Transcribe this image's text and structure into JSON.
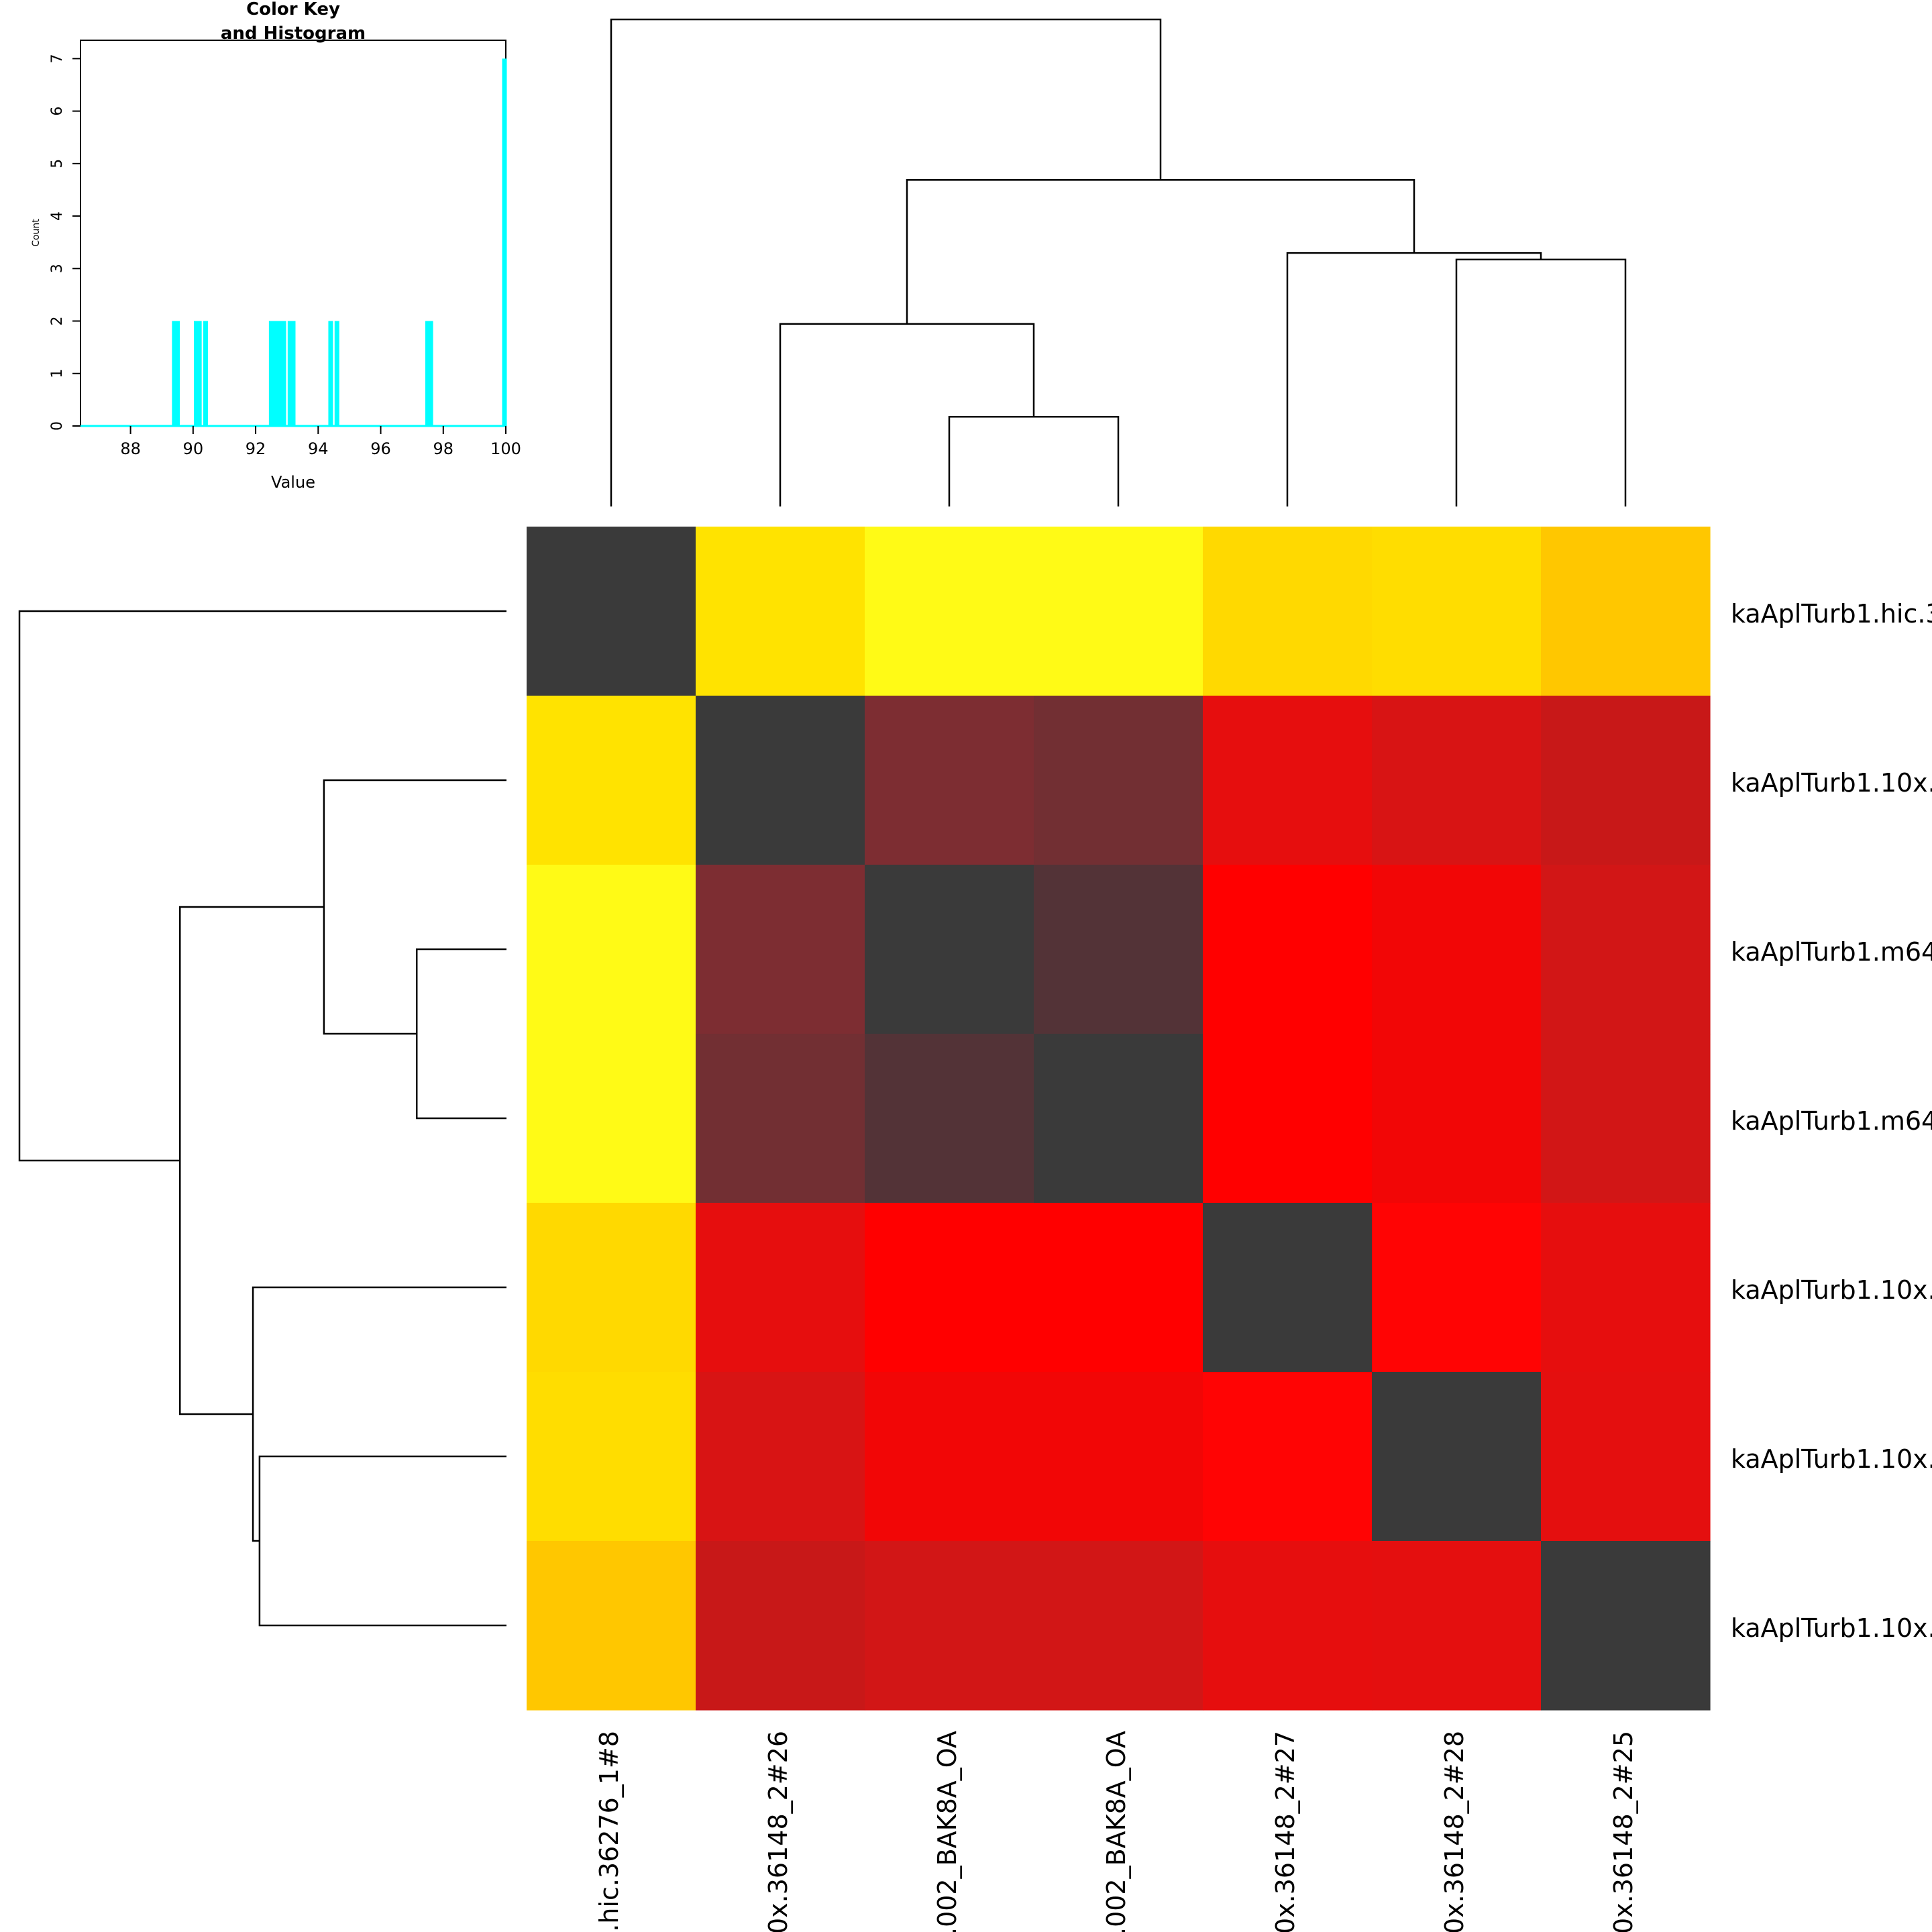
{
  "colors": {
    "histogram": "#00FFFF",
    "diagonal": "#3A3A3A",
    "axis": "#000000"
  },
  "chart_data": [
    {
      "type": "bar",
      "role": "color-key-histogram",
      "title_line1": "Color Key",
      "title_line2": "and Histogram",
      "xlabel": "Value",
      "ylabel": "Count",
      "xlim": [
        86.4,
        100
      ],
      "ylim": [
        0,
        7.35
      ],
      "xticks": [
        "88",
        "90",
        "92",
        "94",
        "96",
        "98",
        "100"
      ],
      "yticks": [
        "0",
        "1",
        "2",
        "3",
        "4",
        "5",
        "6",
        "7"
      ],
      "bins": [
        {
          "x": 89.4,
          "count": 2
        },
        {
          "x": 89.5,
          "count": 2
        },
        {
          "x": 90.1,
          "count": 2
        },
        {
          "x": 90.2,
          "count": 2
        },
        {
          "x": 90.4,
          "count": 2
        },
        {
          "x": 92.5,
          "count": 2
        },
        {
          "x": 92.6,
          "count": 2
        },
        {
          "x": 92.7,
          "count": 2
        },
        {
          "x": 92.8,
          "count": 2
        },
        {
          "x": 92.9,
          "count": 2
        },
        {
          "x": 93.1,
          "count": 2
        },
        {
          "x": 93.2,
          "count": 2
        },
        {
          "x": 94.4,
          "count": 2
        },
        {
          "x": 94.6,
          "count": 2
        },
        {
          "x": 97.5,
          "count": 2
        },
        {
          "x": 97.6,
          "count": 2
        },
        {
          "x": 100.0,
          "count": 7
        }
      ]
    },
    {
      "type": "heatmap",
      "role": "pairwise-identity-heatmap",
      "row_labels": [
        "kaAplTurb1.hic.3",
        "kaAplTurb1.10x.",
        "kaAplTurb1.m64",
        "kaAplTurb1.m64",
        "kaAplTurb1.10x.",
        "kaAplTurb1.10x.",
        "kaAplTurb1.10x."
      ],
      "col_labels": [
        ".hic.36276_1#8",
        "0x.36148_2#26",
        ".002_BAK8A_OA",
        ".002_BAK8A_OA",
        "0x.36148_2#27",
        "0x.36148_2#28",
        "0x.36148_2#25"
      ],
      "cells": [
        [
          "#3A3A3A",
          "#FFE300",
          "#FFFA16",
          "#FFFA16",
          "#FFD900",
          "#FFDD00",
          "#FFC700"
        ],
        [
          "#FFE300",
          "#3A3A3A",
          "#7D2D32",
          "#722F33",
          "#E60E0E",
          "#D81414",
          "#C81818"
        ],
        [
          "#FFFA16",
          "#7D2D32",
          "#3A3A3A",
          "#533337",
          "#FF0000",
          "#F20606",
          "#D21616"
        ],
        [
          "#FFFA16",
          "#722F33",
          "#533337",
          "#3A3A3A",
          "#FF0000",
          "#F20606",
          "#D21616"
        ],
        [
          "#FFD900",
          "#E60E0E",
          "#FF0000",
          "#FF0000",
          "#3A3A3A",
          "#FF0404",
          "#E60E0E"
        ],
        [
          "#FFDD00",
          "#D81414",
          "#F20606",
          "#F20606",
          "#FF0404",
          "#3A3A3A",
          "#E40F0F"
        ],
        [
          "#FFC700",
          "#C81818",
          "#D21616",
          "#D21616",
          "#E60E0E",
          "#E40F0F",
          "#3A3A3A"
        ]
      ],
      "dendrogram_merges": [
        {
          "left": 2,
          "right": 3,
          "height": 0.354
        },
        {
          "left": 1,
          "right": 7,
          "height": 0.72
        },
        {
          "left": 5,
          "right": 6,
          "height": 0.974
        },
        {
          "left": 4,
          "right": 9,
          "height": 1.0
        },
        {
          "left": 8,
          "right": 10,
          "height": 1.288
        },
        {
          "left": 0,
          "right": 11,
          "height": 1.921
        }
      ]
    }
  ]
}
